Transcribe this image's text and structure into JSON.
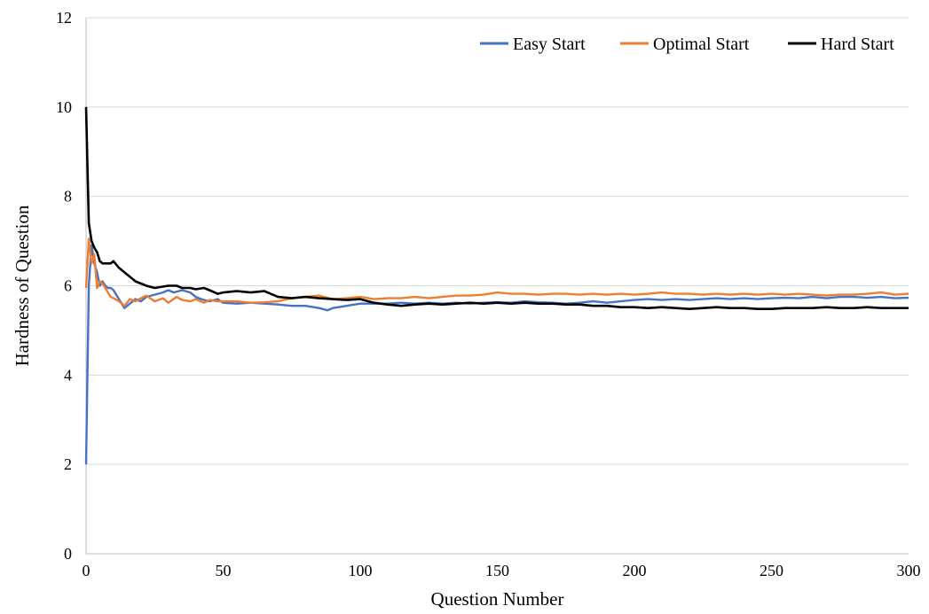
{
  "chart_data": {
    "type": "line",
    "title": "",
    "xlabel": "Question Number",
    "ylabel": "Hardness of Question",
    "xlim": [
      0,
      300
    ],
    "ylim": [
      0,
      12
    ],
    "xticks": [
      0,
      50,
      100,
      150,
      200,
      250,
      300
    ],
    "yticks": [
      0,
      2,
      4,
      6,
      8,
      10,
      12
    ],
    "grid": "horizontal",
    "legend": "top-right",
    "series": [
      {
        "name": "Easy Start",
        "color": "#4472c4",
        "x": [
          0,
          1,
          2,
          3,
          4,
          5,
          6,
          7,
          8,
          9,
          10,
          12,
          14,
          16,
          18,
          20,
          22,
          25,
          28,
          30,
          32,
          35,
          38,
          40,
          42,
          45,
          48,
          50,
          55,
          60,
          65,
          70,
          75,
          80,
          85,
          88,
          90,
          95,
          100,
          105,
          110,
          115,
          120,
          125,
          130,
          135,
          140,
          145,
          150,
          155,
          160,
          165,
          170,
          175,
          180,
          185,
          190,
          195,
          200,
          205,
          210,
          215,
          220,
          225,
          230,
          235,
          240,
          245,
          250,
          255,
          260,
          265,
          270,
          275,
          280,
          285,
          290,
          295,
          300
        ],
        "values": [
          2.0,
          6.0,
          6.9,
          6.5,
          6.3,
          6.0,
          6.1,
          6.0,
          5.95,
          5.95,
          5.9,
          5.7,
          5.5,
          5.6,
          5.7,
          5.65,
          5.75,
          5.8,
          5.85,
          5.9,
          5.85,
          5.9,
          5.85,
          5.75,
          5.7,
          5.65,
          5.7,
          5.62,
          5.6,
          5.62,
          5.6,
          5.58,
          5.55,
          5.55,
          5.5,
          5.45,
          5.5,
          5.55,
          5.6,
          5.6,
          5.6,
          5.62,
          5.6,
          5.62,
          5.6,
          5.62,
          5.6,
          5.62,
          5.63,
          5.62,
          5.65,
          5.63,
          5.62,
          5.6,
          5.62,
          5.65,
          5.62,
          5.65,
          5.68,
          5.7,
          5.68,
          5.7,
          5.68,
          5.7,
          5.72,
          5.7,
          5.72,
          5.7,
          5.72,
          5.73,
          5.72,
          5.75,
          5.72,
          5.75,
          5.75,
          5.73,
          5.75,
          5.72,
          5.73
        ]
      },
      {
        "name": "Optimal Start",
        "color": "#ed7d31",
        "x": [
          0,
          1,
          2,
          3,
          4,
          5,
          6,
          7,
          8,
          9,
          10,
          12,
          14,
          16,
          18,
          20,
          22,
          25,
          28,
          30,
          33,
          35,
          38,
          40,
          43,
          45,
          48,
          50,
          55,
          60,
          65,
          70,
          75,
          80,
          85,
          90,
          95,
          100,
          105,
          110,
          115,
          120,
          125,
          130,
          135,
          140,
          145,
          150,
          155,
          160,
          165,
          170,
          175,
          180,
          185,
          190,
          195,
          200,
          205,
          210,
          215,
          220,
          225,
          230,
          235,
          240,
          245,
          250,
          255,
          260,
          265,
          270,
          275,
          280,
          285,
          290,
          295,
          300
        ],
        "values": [
          5.95,
          7.05,
          6.5,
          6.7,
          5.95,
          6.1,
          6.05,
          5.95,
          5.85,
          5.75,
          5.72,
          5.65,
          5.55,
          5.7,
          5.65,
          5.72,
          5.78,
          5.65,
          5.72,
          5.62,
          5.75,
          5.68,
          5.65,
          5.7,
          5.62,
          5.68,
          5.65,
          5.65,
          5.65,
          5.62,
          5.63,
          5.65,
          5.72,
          5.75,
          5.78,
          5.7,
          5.72,
          5.75,
          5.7,
          5.72,
          5.72,
          5.75,
          5.72,
          5.75,
          5.78,
          5.78,
          5.8,
          5.85,
          5.82,
          5.82,
          5.8,
          5.82,
          5.82,
          5.8,
          5.82,
          5.8,
          5.82,
          5.8,
          5.82,
          5.85,
          5.82,
          5.82,
          5.8,
          5.82,
          5.8,
          5.82,
          5.8,
          5.82,
          5.8,
          5.82,
          5.8,
          5.78,
          5.8,
          5.8,
          5.82,
          5.85,
          5.8,
          5.82
        ]
      },
      {
        "name": "Hard Start",
        "color": "#000000",
        "x": [
          0,
          1,
          2,
          3,
          4,
          5,
          6,
          7,
          8,
          9,
          10,
          12,
          14,
          16,
          18,
          20,
          22,
          25,
          28,
          30,
          33,
          35,
          38,
          40,
          43,
          45,
          48,
          50,
          55,
          60,
          65,
          70,
          75,
          80,
          85,
          90,
          95,
          100,
          105,
          110,
          115,
          120,
          125,
          130,
          135,
          140,
          145,
          150,
          155,
          160,
          165,
          170,
          175,
          180,
          185,
          190,
          195,
          200,
          205,
          210,
          215,
          220,
          225,
          230,
          235,
          240,
          245,
          250,
          255,
          260,
          265,
          270,
          275,
          280,
          285,
          290,
          295,
          300
        ],
        "values": [
          10.0,
          7.4,
          7.0,
          6.85,
          6.75,
          6.55,
          6.5,
          6.5,
          6.5,
          6.5,
          6.55,
          6.4,
          6.3,
          6.2,
          6.1,
          6.05,
          6.0,
          5.95,
          5.98,
          6.0,
          6.0,
          5.95,
          5.95,
          5.92,
          5.95,
          5.9,
          5.82,
          5.85,
          5.88,
          5.85,
          5.88,
          5.75,
          5.72,
          5.75,
          5.72,
          5.7,
          5.68,
          5.7,
          5.62,
          5.58,
          5.55,
          5.58,
          5.6,
          5.58,
          5.6,
          5.62,
          5.6,
          5.62,
          5.6,
          5.62,
          5.6,
          5.6,
          5.58,
          5.58,
          5.55,
          5.55,
          5.52,
          5.52,
          5.5,
          5.52,
          5.5,
          5.48,
          5.5,
          5.52,
          5.5,
          5.5,
          5.48,
          5.48,
          5.5,
          5.5,
          5.5,
          5.52,
          5.5,
          5.5,
          5.52,
          5.5,
          5.5,
          5.5
        ]
      }
    ]
  }
}
